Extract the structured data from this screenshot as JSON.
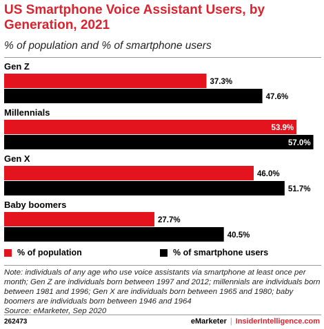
{
  "header": {
    "title": "US Smartphone Voice Assistant Users, by Generation, 2021",
    "subtitle": "% of population and % of smartphone users"
  },
  "chart_data": {
    "type": "bar",
    "orientation": "horizontal",
    "categories": [
      "Gen Z",
      "Millennials",
      "Gen X",
      "Baby boomers"
    ],
    "series": [
      {
        "name": "% of population",
        "values": [
          37.3,
          53.9,
          46.0,
          27.7
        ],
        "color": "#e3141e"
      },
      {
        "name": "% of smartphone users",
        "values": [
          47.6,
          57.0,
          51.7,
          40.5
        ],
        "color": "#000000"
      }
    ],
    "value_labels": [
      [
        "37.3%",
        "53.9%",
        "46.0%",
        "27.7%"
      ],
      [
        "47.6%",
        "57.0%",
        "51.7%",
        "40.5%"
      ]
    ],
    "xlim": [
      0,
      58.2
    ],
    "grid": false,
    "legend_position": "bottom"
  },
  "legend": {
    "population_label": "% of population",
    "smartphone_label": "% of smartphone users"
  },
  "note": "Note: individuals of any age who use voice assistants via smartphone at least once per month; Gen Z are individuals born between 1997 and 2012; millennials are individuals born between 1981 and 1996; Gen X are individuals born between 1965 and 1980; baby boomers are individuals born between 1946 and 1964",
  "source": "Source: eMarketer, Sep 2020",
  "footer": {
    "chart_id": "262473",
    "brand_emarketer": "eMarketer",
    "separator": "|",
    "brand_insider": "InsiderIntelligence.com"
  }
}
